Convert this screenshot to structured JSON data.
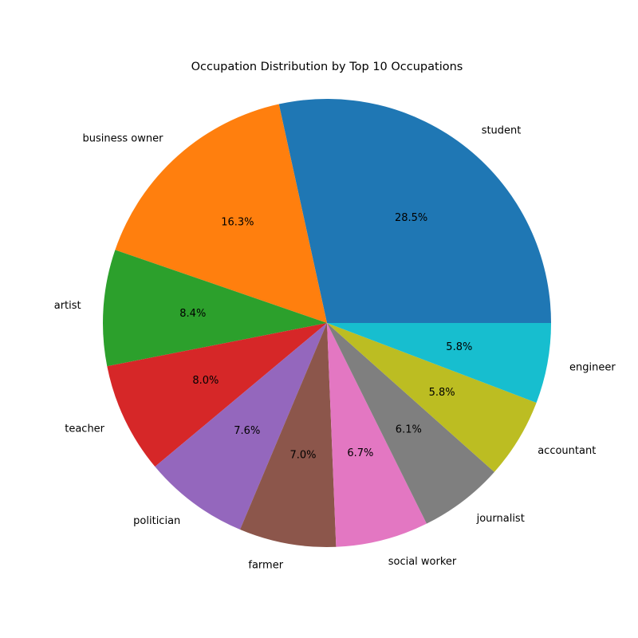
{
  "chart_data": {
    "type": "pie",
    "title": "Occupation Distribution by Top 10 Occupations",
    "start_angle_deg": 0,
    "direction": "counterclockwise",
    "slices": [
      {
        "label": "student",
        "value": 28.5,
        "pct_label": "28.5%",
        "color": "#1f77b4"
      },
      {
        "label": "business owner",
        "value": 16.3,
        "pct_label": "16.3%",
        "color": "#ff7f0e"
      },
      {
        "label": "artist",
        "value": 8.4,
        "pct_label": "8.4%",
        "color": "#2ca02c"
      },
      {
        "label": "teacher",
        "value": 8.0,
        "pct_label": "8.0%",
        "color": "#d62728"
      },
      {
        "label": "politician",
        "value": 7.6,
        "pct_label": "7.6%",
        "color": "#9467bd"
      },
      {
        "label": "farmer",
        "value": 7.0,
        "pct_label": "7.0%",
        "color": "#8c564b"
      },
      {
        "label": "social worker",
        "value": 6.7,
        "pct_label": "6.7%",
        "color": "#e377c2"
      },
      {
        "label": "journalist",
        "value": 6.1,
        "pct_label": "6.1%",
        "color": "#7f7f7f"
      },
      {
        "label": "accountant",
        "value": 5.8,
        "pct_label": "5.8%",
        "color": "#bcbd22"
      },
      {
        "label": "engineer",
        "value": 5.8,
        "pct_label": "5.8%",
        "color": "#17becf"
      }
    ]
  }
}
